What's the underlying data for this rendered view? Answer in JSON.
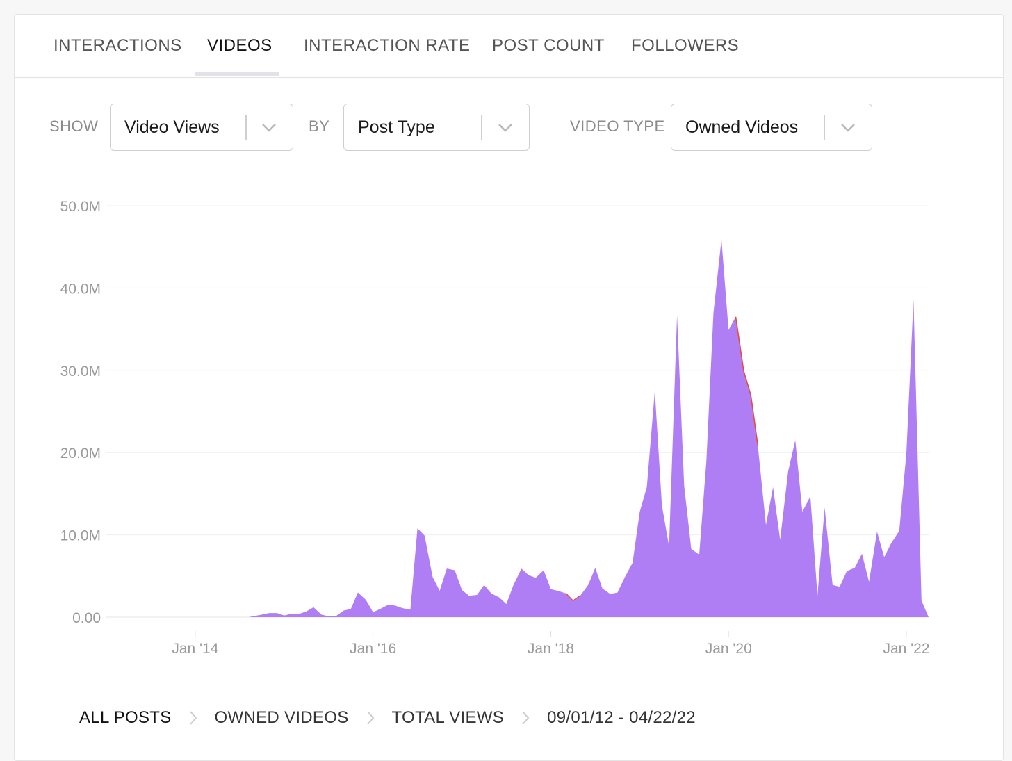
{
  "tabs": [
    {
      "label": "INTERACTIONS",
      "active": false
    },
    {
      "label": "VIDEOS",
      "active": true
    },
    {
      "label": "INTERACTION RATE",
      "active": false
    },
    {
      "label": "POST COUNT",
      "active": false
    },
    {
      "label": "FOLLOWERS",
      "active": false
    }
  ],
  "controls": {
    "show_label": "SHOW",
    "show_value": "Video Views",
    "by_label": "BY",
    "by_value": "Post Type",
    "video_type_label": "VIDEO TYPE",
    "video_type_value": "Owned Videos"
  },
  "chart_data": {
    "type": "area",
    "ylim": [
      0,
      50
    ],
    "y_ticks": [
      0,
      10,
      20,
      30,
      40,
      50
    ],
    "y_tick_labels": [
      "0.00",
      "10.0M",
      "20.0M",
      "30.0M",
      "40.0M",
      "50.0M"
    ],
    "x_tick_labels": [
      "Jan '14",
      "Jan '16",
      "Jan '18",
      "Jan '20",
      "Jan '22"
    ],
    "x_tick_years": [
      2014,
      2016,
      2018,
      2020,
      2022
    ],
    "xlim": [
      2013.0,
      2022.25
    ],
    "grid": true,
    "legend": "none",
    "colors": {
      "fill": "#b07ef4",
      "accent": "#e94a3a",
      "grid": "#efefef",
      "tick_text": "#9a9a9a"
    },
    "series": [
      {
        "values_unit": "millions of views",
        "points": [
          [
            2013.0,
            0
          ],
          [
            2014.0,
            0
          ],
          [
            2014.6,
            0
          ],
          [
            2014.75,
            0.3
          ],
          [
            2014.83,
            0.5
          ],
          [
            2014.92,
            0.5
          ],
          [
            2015.0,
            0.2
          ],
          [
            2015.08,
            0.4
          ],
          [
            2015.17,
            0.4
          ],
          [
            2015.25,
            0.7
          ],
          [
            2015.33,
            1.2
          ],
          [
            2015.42,
            0.3
          ],
          [
            2015.5,
            0.1
          ],
          [
            2015.58,
            0.1
          ],
          [
            2015.67,
            0.8
          ],
          [
            2015.75,
            1.0
          ],
          [
            2015.83,
            3.0
          ],
          [
            2015.92,
            2.1
          ],
          [
            2016.0,
            0.6
          ],
          [
            2016.08,
            1.0
          ],
          [
            2016.17,
            1.5
          ],
          [
            2016.25,
            1.4
          ],
          [
            2016.33,
            1.1
          ],
          [
            2016.42,
            0.9
          ],
          [
            2016.5,
            10.8
          ],
          [
            2016.58,
            9.9
          ],
          [
            2016.67,
            4.9
          ],
          [
            2016.75,
            3.2
          ],
          [
            2016.83,
            5.9
          ],
          [
            2016.92,
            5.7
          ],
          [
            2017.0,
            3.3
          ],
          [
            2017.08,
            2.6
          ],
          [
            2017.17,
            2.7
          ],
          [
            2017.25,
            3.9
          ],
          [
            2017.33,
            2.9
          ],
          [
            2017.42,
            2.4
          ],
          [
            2017.5,
            1.6
          ],
          [
            2017.58,
            3.9
          ],
          [
            2017.67,
            5.9
          ],
          [
            2017.75,
            5.1
          ],
          [
            2017.83,
            4.8
          ],
          [
            2017.92,
            5.7
          ],
          [
            2018.0,
            3.4
          ],
          [
            2018.08,
            3.2
          ],
          [
            2018.17,
            2.9
          ],
          [
            2018.25,
            2.0
          ],
          [
            2018.33,
            2.6
          ],
          [
            2018.42,
            3.9
          ],
          [
            2018.5,
            6.0
          ],
          [
            2018.58,
            3.5
          ],
          [
            2018.67,
            2.8
          ],
          [
            2018.75,
            3.0
          ],
          [
            2018.83,
            4.8
          ],
          [
            2018.92,
            6.6
          ],
          [
            2019.0,
            12.8
          ],
          [
            2019.08,
            15.8
          ],
          [
            2019.17,
            27.5
          ],
          [
            2019.25,
            13.6
          ],
          [
            2019.33,
            8.6
          ],
          [
            2019.42,
            36.7
          ],
          [
            2019.5,
            16.0
          ],
          [
            2019.58,
            8.3
          ],
          [
            2019.67,
            7.6
          ],
          [
            2019.75,
            19.0
          ],
          [
            2019.83,
            37.0
          ],
          [
            2019.92,
            45.9
          ],
          [
            2020.0,
            34.9
          ],
          [
            2020.08,
            36.5
          ],
          [
            2020.17,
            29.9
          ],
          [
            2020.25,
            27.0
          ],
          [
            2020.33,
            20.8
          ],
          [
            2020.42,
            11.2
          ],
          [
            2020.5,
            15.8
          ],
          [
            2020.58,
            9.4
          ],
          [
            2020.67,
            17.7
          ],
          [
            2020.75,
            21.5
          ],
          [
            2020.83,
            12.8
          ],
          [
            2020.92,
            14.7
          ],
          [
            2021.0,
            2.6
          ],
          [
            2021.08,
            13.3
          ],
          [
            2021.17,
            3.9
          ],
          [
            2021.25,
            3.7
          ],
          [
            2021.33,
            5.6
          ],
          [
            2021.42,
            6.0
          ],
          [
            2021.5,
            7.7
          ],
          [
            2021.58,
            4.3
          ],
          [
            2021.67,
            10.4
          ],
          [
            2021.75,
            7.3
          ],
          [
            2021.83,
            9.0
          ],
          [
            2021.92,
            10.5
          ],
          [
            2022.0,
            19.9
          ],
          [
            2022.08,
            38.6
          ],
          [
            2022.17,
            2.0
          ],
          [
            2022.25,
            0
          ]
        ]
      }
    ]
  },
  "breadcrumbs": [
    "ALL POSTS",
    "OWNED VIDEOS",
    "TOTAL VIEWS",
    "09/01/12 - 04/22/22"
  ]
}
